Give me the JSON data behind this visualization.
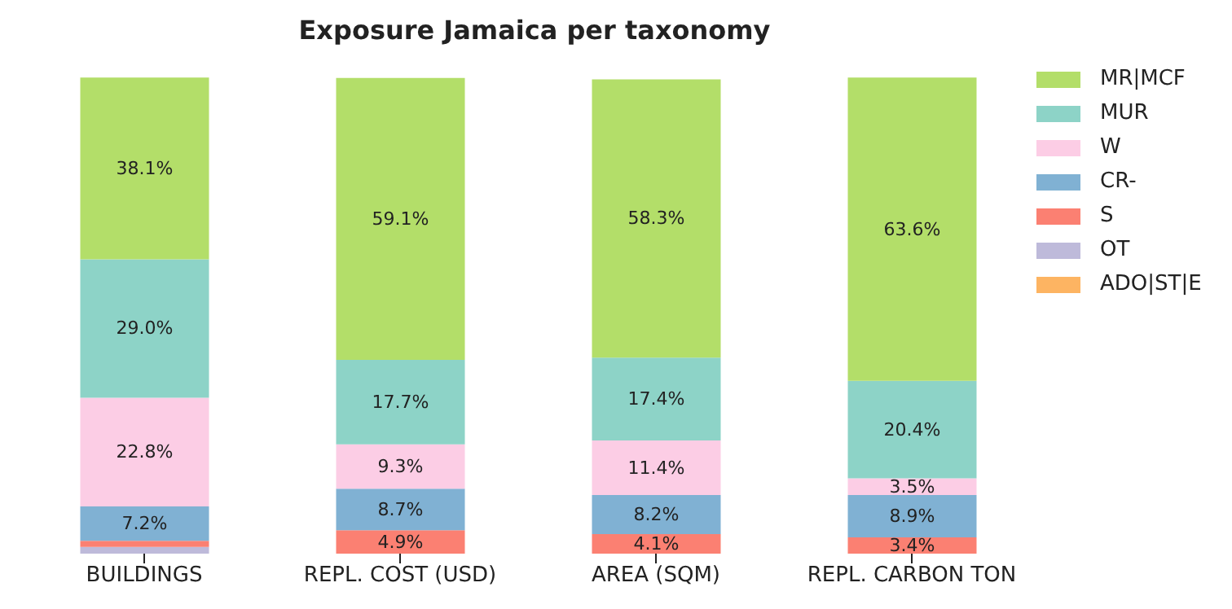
{
  "chart_data": {
    "type": "bar",
    "title": "Exposure Jamaica per taxonomy",
    "stacked": true,
    "categories": [
      "BUILDINGS",
      "REPL. COST (USD)",
      "AREA (SQM)",
      "REPL. CARBON TON"
    ],
    "series": [
      {
        "name": "ADO|ST|E",
        "color": "#fdb462",
        "values": [
          null,
          null,
          null,
          null
        ],
        "value_labels": [
          null,
          null,
          null,
          null
        ]
      },
      {
        "name": "OT",
        "color": "#bebada",
        "values": [
          1.4,
          null,
          null,
          null
        ],
        "value_labels": [
          null,
          null,
          null,
          null
        ]
      },
      {
        "name": "S",
        "color": "#fb8072",
        "values": [
          1.3,
          4.9,
          4.1,
          3.4
        ],
        "value_labels": [
          null,
          "4.9%",
          "4.1%",
          "3.4%"
        ]
      },
      {
        "name": "CR-",
        "color": "#80b1d3",
        "values": [
          7.2,
          8.7,
          8.2,
          8.9
        ],
        "value_labels": [
          "7.2%",
          "8.7%",
          "8.2%",
          "8.9%"
        ]
      },
      {
        "name": "W",
        "color": "#fccde5",
        "values": [
          22.8,
          9.3,
          11.4,
          3.5
        ],
        "value_labels": [
          "22.8%",
          "9.3%",
          "11.4%",
          "3.5%"
        ]
      },
      {
        "name": "MUR",
        "color": "#8dd3c7",
        "values": [
          29.0,
          17.7,
          17.4,
          20.4
        ],
        "value_labels": [
          "29.0%",
          "17.7%",
          "17.4%",
          "20.4%"
        ]
      },
      {
        "name": "MR|MCF",
        "color": "#b3de69",
        "values": [
          38.1,
          59.1,
          58.3,
          63.6
        ],
        "value_labels": [
          "38.1%",
          "59.1%",
          "58.3%",
          "63.6%"
        ]
      }
    ],
    "ylim": [
      0,
      100
    ],
    "tick_labels": "x",
    "legend": "top right"
  }
}
